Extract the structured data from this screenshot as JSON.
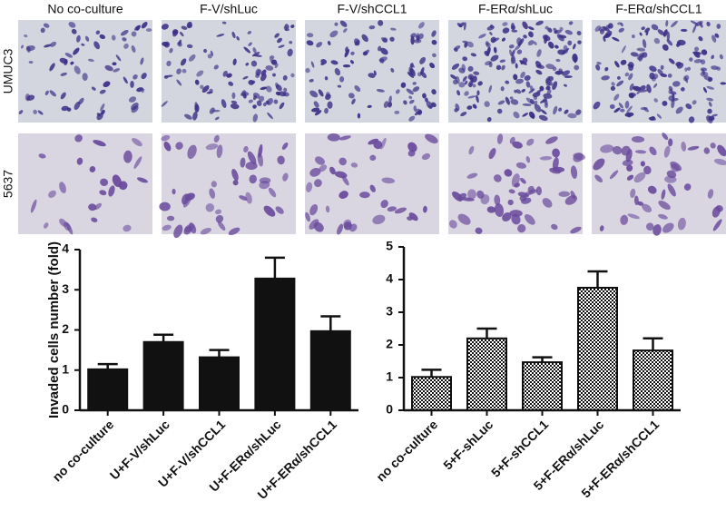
{
  "image_grid": {
    "column_labels": [
      "No co-culture",
      "F-V/shLuc",
      "F-V/shCCL1",
      "F-ERα/shLuc",
      "F-ERα/shCCL1"
    ],
    "row_labels": [
      "UMUC3",
      "5637"
    ]
  },
  "chart_data": [
    {
      "type": "bar",
      "y_label": "Invaded cells number (fold)",
      "categories": [
        "no co-culture",
        "U+F-V/shLuc",
        "U+F-V/shCCL1",
        "U+F-ERα/shLuc",
        "U+F-ERα/shCCL1"
      ],
      "values": [
        1.02,
        1.7,
        1.32,
        3.28,
        1.97
      ],
      "errors": [
        0.13,
        0.18,
        0.18,
        0.52,
        0.37
      ],
      "color": "#111111",
      "fill": "solid",
      "ylim": [
        0,
        4
      ],
      "yticks": [
        0,
        1,
        2,
        3,
        4
      ]
    },
    {
      "type": "bar",
      "categories": [
        "no co-culture",
        "5+F-shLuc",
        "5+F-shCCL1",
        "5+F-ERα/shLuc",
        "5+F-ERα/shCCL1"
      ],
      "values": [
        1.02,
        2.2,
        1.47,
        3.75,
        1.83
      ],
      "errors": [
        0.22,
        0.3,
        0.15,
        0.5,
        0.37
      ],
      "color": "#111111",
      "fill": "checker",
      "ylim": [
        0,
        5
      ],
      "yticks": [
        0,
        1,
        2,
        3,
        4,
        5
      ]
    }
  ]
}
